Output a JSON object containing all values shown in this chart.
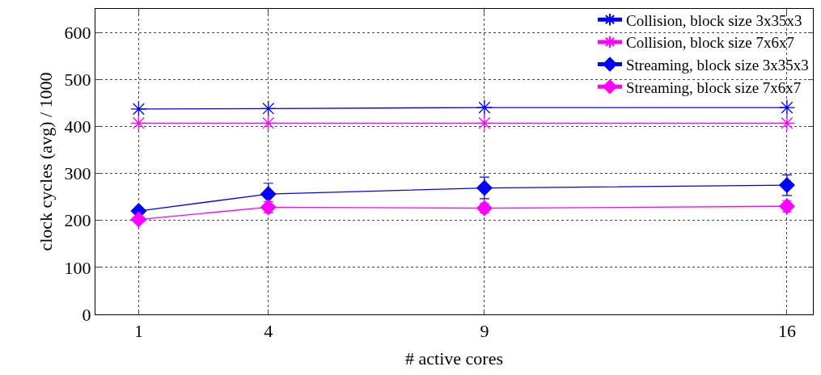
{
  "chart_data": {
    "type": "line",
    "xlabel": "# active cores",
    "ylabel": "clock cycles (avg) / 1000",
    "x": [
      1,
      4,
      9,
      16
    ],
    "xlim": [
      0,
      16.6
    ],
    "xticks": [
      1,
      4,
      9,
      16
    ],
    "ylim": [
      0,
      650
    ],
    "yticks": [
      0,
      100,
      200,
      300,
      400,
      500,
      600
    ],
    "grid": true,
    "legend": "top right",
    "line_style": "solid",
    "series": [
      {
        "name": "Collision, block size 3x35x3",
        "color": "#0000ff",
        "marker": "cross",
        "values": [
          437,
          438,
          440,
          440
        ]
      },
      {
        "name": "Collision, block size 7x6x7",
        "color": "#ff00ff",
        "marker": "cross",
        "values": [
          407,
          407,
          407,
          407
        ]
      },
      {
        "name": "Streaming, block size 3x35x3",
        "color": "#0000ff",
        "marker": "diamond",
        "values": [
          220,
          256,
          269,
          275
        ],
        "errors": [
          null,
          23,
          23,
          22
        ]
      },
      {
        "name": "Streaming, block size 7x6x7",
        "color": "#ff00ff",
        "marker": "diamond",
        "values": [
          202,
          228,
          226,
          230
        ],
        "errors": [
          null,
          12,
          10,
          12
        ]
      }
    ]
  }
}
